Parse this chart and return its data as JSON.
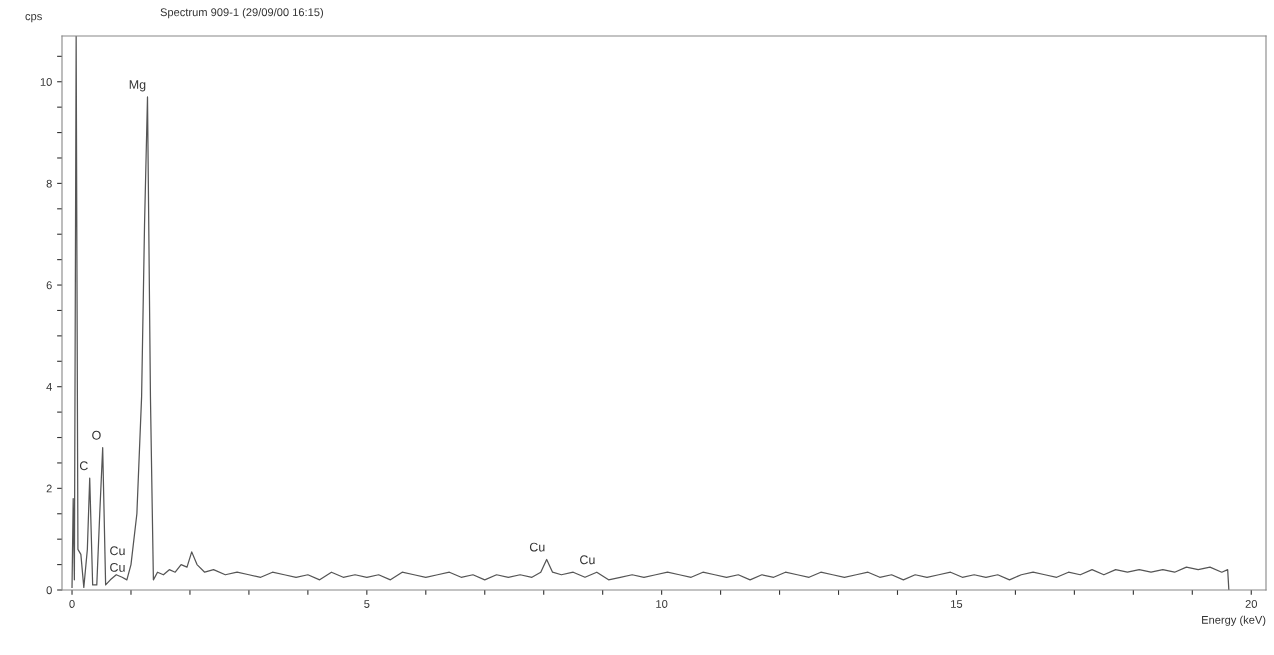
{
  "chart_data": {
    "type": "line",
    "title": "Spectrum 909-1 (29/09/00 16:15)",
    "xlabel": "Energy (keV)",
    "ylabel": "cps",
    "series": [
      {
        "color": "#555555",
        "x": [
          0.0,
          0.02,
          0.04,
          0.07,
          0.1,
          0.15,
          0.2,
          0.26,
          0.3,
          0.35,
          0.42,
          0.47,
          0.52,
          0.57,
          0.65,
          0.75,
          0.85,
          0.93,
          1.0,
          1.1,
          1.18,
          1.23,
          1.28,
          1.33,
          1.38,
          1.45,
          1.55,
          1.65,
          1.75,
          1.85,
          1.95,
          2.03,
          2.12,
          2.25,
          2.4,
          2.6,
          2.8,
          3.0,
          3.2,
          3.4,
          3.6,
          3.8,
          4.0,
          4.2,
          4.4,
          4.6,
          4.8,
          5.0,
          5.2,
          5.4,
          5.6,
          5.8,
          6.0,
          6.2,
          6.4,
          6.6,
          6.8,
          7.0,
          7.2,
          7.4,
          7.6,
          7.8,
          7.95,
          8.05,
          8.15,
          8.3,
          8.5,
          8.7,
          8.9,
          9.1,
          9.3,
          9.5,
          9.7,
          9.9,
          10.1,
          10.3,
          10.5,
          10.7,
          10.9,
          11.1,
          11.3,
          11.5,
          11.7,
          11.9,
          12.1,
          12.3,
          12.5,
          12.7,
          12.9,
          13.1,
          13.3,
          13.5,
          13.7,
          13.9,
          14.1,
          14.3,
          14.5,
          14.7,
          14.9,
          15.1,
          15.3,
          15.5,
          15.7,
          15.9,
          16.1,
          16.3,
          16.5,
          16.7,
          16.9,
          17.1,
          17.3,
          17.5,
          17.7,
          17.9,
          18.1,
          18.3,
          18.5,
          18.7,
          18.9,
          19.1,
          19.3,
          19.5,
          19.6,
          19.62
        ],
        "values": [
          0.05,
          1.8,
          0.2,
          10.9,
          0.8,
          0.7,
          0.05,
          0.8,
          2.2,
          0.1,
          0.1,
          1.5,
          2.8,
          0.1,
          0.2,
          0.3,
          0.25,
          0.2,
          0.5,
          1.5,
          3.8,
          7.2,
          9.7,
          3.8,
          0.2,
          0.35,
          0.3,
          0.4,
          0.35,
          0.5,
          0.45,
          0.75,
          0.5,
          0.35,
          0.4,
          0.3,
          0.35,
          0.3,
          0.25,
          0.35,
          0.3,
          0.25,
          0.3,
          0.2,
          0.35,
          0.25,
          0.3,
          0.25,
          0.3,
          0.2,
          0.35,
          0.3,
          0.25,
          0.3,
          0.35,
          0.25,
          0.3,
          0.2,
          0.3,
          0.25,
          0.3,
          0.25,
          0.35,
          0.6,
          0.35,
          0.3,
          0.35,
          0.25,
          0.35,
          0.2,
          0.25,
          0.3,
          0.25,
          0.3,
          0.35,
          0.3,
          0.25,
          0.35,
          0.3,
          0.25,
          0.3,
          0.2,
          0.3,
          0.25,
          0.35,
          0.3,
          0.25,
          0.35,
          0.3,
          0.25,
          0.3,
          0.35,
          0.25,
          0.3,
          0.2,
          0.3,
          0.25,
          0.3,
          0.35,
          0.25,
          0.3,
          0.25,
          0.3,
          0.2,
          0.3,
          0.35,
          0.3,
          0.25,
          0.35,
          0.3,
          0.4,
          0.3,
          0.4,
          0.35,
          0.4,
          0.35,
          0.4,
          0.35,
          0.45,
          0.4,
          0.45,
          0.35,
          0.4,
          0.0
        ]
      }
    ],
    "annotations": [
      {
        "text": "Mg",
        "x": 1.28,
        "y": 9.7
      },
      {
        "text": "O",
        "x": 0.52,
        "y": 2.8
      },
      {
        "text": "C",
        "x": 0.3,
        "y": 2.2
      },
      {
        "text": "Cu",
        "x": 0.93,
        "y": 0.2
      },
      {
        "text": "Cu",
        "x": 0.93,
        "y": 0.2
      },
      {
        "text": "Cu",
        "x": 8.05,
        "y": 0.6
      },
      {
        "text": "Cu",
        "x": 8.9,
        "y": 0.35
      }
    ],
    "xlim": [
      -0.17,
      20.25
    ],
    "ylim": [
      0,
      10.9
    ],
    "xticks": [
      0,
      {
        "value": 1,
        "label": null
      },
      {
        "value": 2,
        "label": null
      },
      {
        "value": 3,
        "label": null
      },
      {
        "value": 4,
        "label": null
      },
      5,
      {
        "value": 6,
        "label": null
      },
      {
        "value": 7,
        "label": null
      },
      {
        "value": 8,
        "label": null
      },
      {
        "value": 9,
        "label": null
      },
      10,
      {
        "value": 11,
        "label": null
      },
      {
        "value": 12,
        "label": null
      },
      {
        "value": 13,
        "label": null
      },
      {
        "value": 14,
        "label": null
      },
      15,
      {
        "value": 16,
        "label": null
      },
      {
        "value": 17,
        "label": null
      },
      {
        "value": 18,
        "label": null
      },
      {
        "value": 19,
        "label": null
      },
      20
    ],
    "yticks": [
      0,
      {
        "value": 0.5,
        "label": null
      },
      {
        "value": 1,
        "label": null
      },
      {
        "value": 1.5,
        "label": null
      },
      2,
      {
        "value": 2.5,
        "label": null
      },
      {
        "value": 3,
        "label": null
      },
      {
        "value": 3.5,
        "label": null
      },
      4,
      {
        "value": 4.5,
        "label": null
      },
      {
        "value": 5,
        "label": null
      },
      {
        "value": 5.5,
        "label": null
      },
      6,
      {
        "value": 6.5,
        "label": null
      },
      {
        "value": 7,
        "label": null
      },
      {
        "value": 7.5,
        "label": null
      },
      8,
      {
        "value": 8.5,
        "label": null
      },
      {
        "value": 9,
        "label": null
      },
      {
        "value": 9.5,
        "label": null
      },
      10,
      {
        "value": 10.5,
        "label": null
      }
    ],
    "grid": false,
    "legend": false
  }
}
